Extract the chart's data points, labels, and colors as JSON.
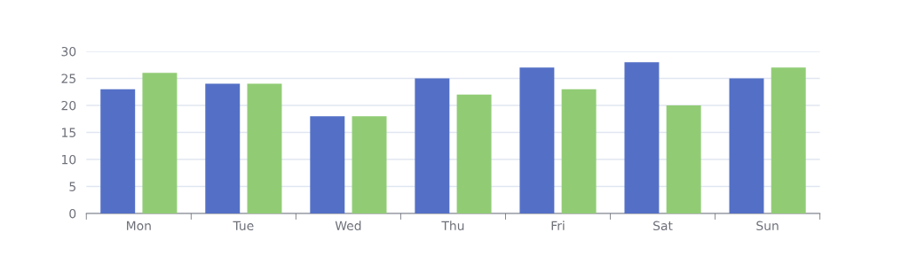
{
  "chart_data": {
    "type": "bar",
    "categories": [
      "Mon",
      "Tue",
      "Wed",
      "Thu",
      "Fri",
      "Sat",
      "Sun"
    ],
    "series": [
      {
        "color": "#5470c6",
        "values": [
          23,
          24,
          18,
          25,
          27,
          28,
          25
        ]
      },
      {
        "color": "#91cc75",
        "values": [
          26,
          24,
          18,
          22,
          23,
          20,
          27
        ]
      }
    ],
    "ylim": [
      0,
      30
    ],
    "yticks": [
      0,
      5,
      10,
      15,
      20,
      25,
      30
    ],
    "grid": "y"
  }
}
